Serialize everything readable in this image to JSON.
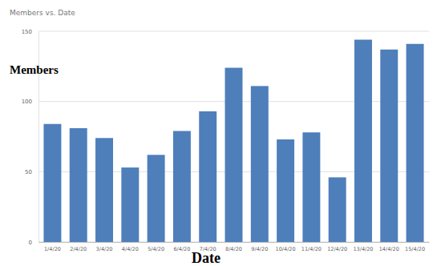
{
  "chart_data": {
    "type": "bar",
    "title": "Members vs. Date",
    "x_label": "Date",
    "y_label": "Members",
    "categories": [
      "1/4/20",
      "2/4/20",
      "3/4/20",
      "4/4/20",
      "5/4/20",
      "6/4/20",
      "7/4/20",
      "8/4/20",
      "9/4/20",
      "10/4/20",
      "11/4/20",
      "12/4/20",
      "13/4/20",
      "14/4/20",
      "15/4/20"
    ],
    "values": [
      84,
      81,
      74,
      53,
      62,
      79,
      93,
      124,
      111,
      73,
      78,
      46,
      144,
      137,
      141
    ],
    "color": "#4e7fbb",
    "ylim": [
      0,
      150
    ],
    "yticks": [
      0,
      50,
      100,
      150
    ],
    "grid": true
  }
}
